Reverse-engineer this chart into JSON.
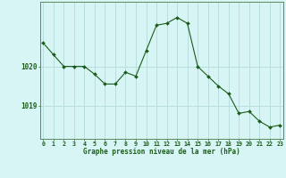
{
  "x": [
    0,
    1,
    2,
    3,
    4,
    5,
    6,
    7,
    8,
    9,
    10,
    11,
    12,
    13,
    14,
    15,
    16,
    17,
    18,
    19,
    20,
    21,
    22,
    23
  ],
  "y": [
    1020.6,
    1020.3,
    1020.0,
    1020.0,
    1020.0,
    1019.8,
    1019.55,
    1019.55,
    1019.85,
    1019.75,
    1020.4,
    1021.05,
    1021.1,
    1021.25,
    1021.1,
    1020.0,
    1019.75,
    1019.5,
    1019.3,
    1018.8,
    1018.85,
    1018.6,
    1018.45,
    1018.5
  ],
  "line_color": "#1a5c1a",
  "marker_color": "#1a5c1a",
  "bg_color": "#d8f5f5",
  "grid_color": "#b8dede",
  "border_color": "#5a8a5a",
  "xlabel": "Graphe pression niveau de la mer (hPa)",
  "xlabel_color": "#1a5c1a",
  "tick_color": "#1a5c1a",
  "ytick_labels": [
    "1019",
    "1020"
  ],
  "ytick_values": [
    1019.0,
    1020.0
  ],
  "ylim": [
    1018.15,
    1021.65
  ],
  "xlim": [
    -0.3,
    23.3
  ],
  "figsize": [
    3.2,
    2.0
  ],
  "dpi": 100
}
